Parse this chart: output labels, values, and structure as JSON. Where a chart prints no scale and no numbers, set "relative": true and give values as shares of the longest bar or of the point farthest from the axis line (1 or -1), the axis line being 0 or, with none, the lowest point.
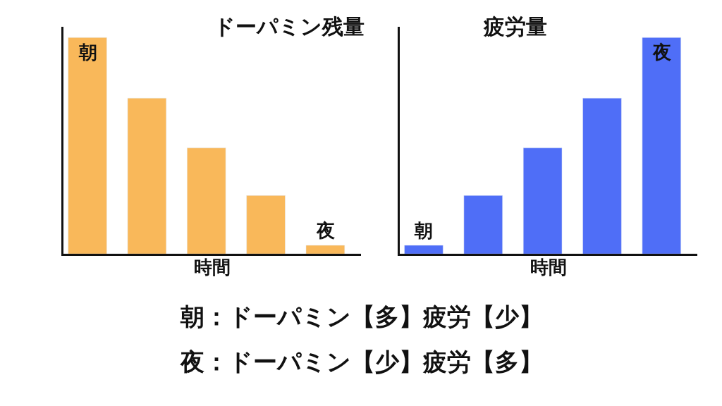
{
  "chart_data": [
    {
      "type": "bar",
      "title": "ドーパミン残量",
      "xlabel": "時間",
      "relative": true,
      "categories": [
        null,
        null,
        null,
        null,
        null
      ],
      "values": [
        1,
        0.72,
        0.49,
        0.27,
        0.04
      ],
      "color": "#f9b85a",
      "annotations": [
        "朝",
        "夜"
      ],
      "legend": false,
      "tick_labels": false
    },
    {
      "type": "bar",
      "title": "疲労量",
      "xlabel": "時間",
      "relative": true,
      "categories": [
        null,
        null,
        null,
        null,
        null
      ],
      "values": [
        0.04,
        0.27,
        0.49,
        0.72,
        1
      ],
      "color": "#4f6ef7",
      "annotations": [
        "朝",
        "夜"
      ],
      "legend": false,
      "tick_labels": false
    },
    {
      "type": "other",
      "annotations": [
        "朝：ドーパミン【多】疲労【少】",
        "夜：ドーパミン【少】疲労【多】"
      ]
    }
  ]
}
